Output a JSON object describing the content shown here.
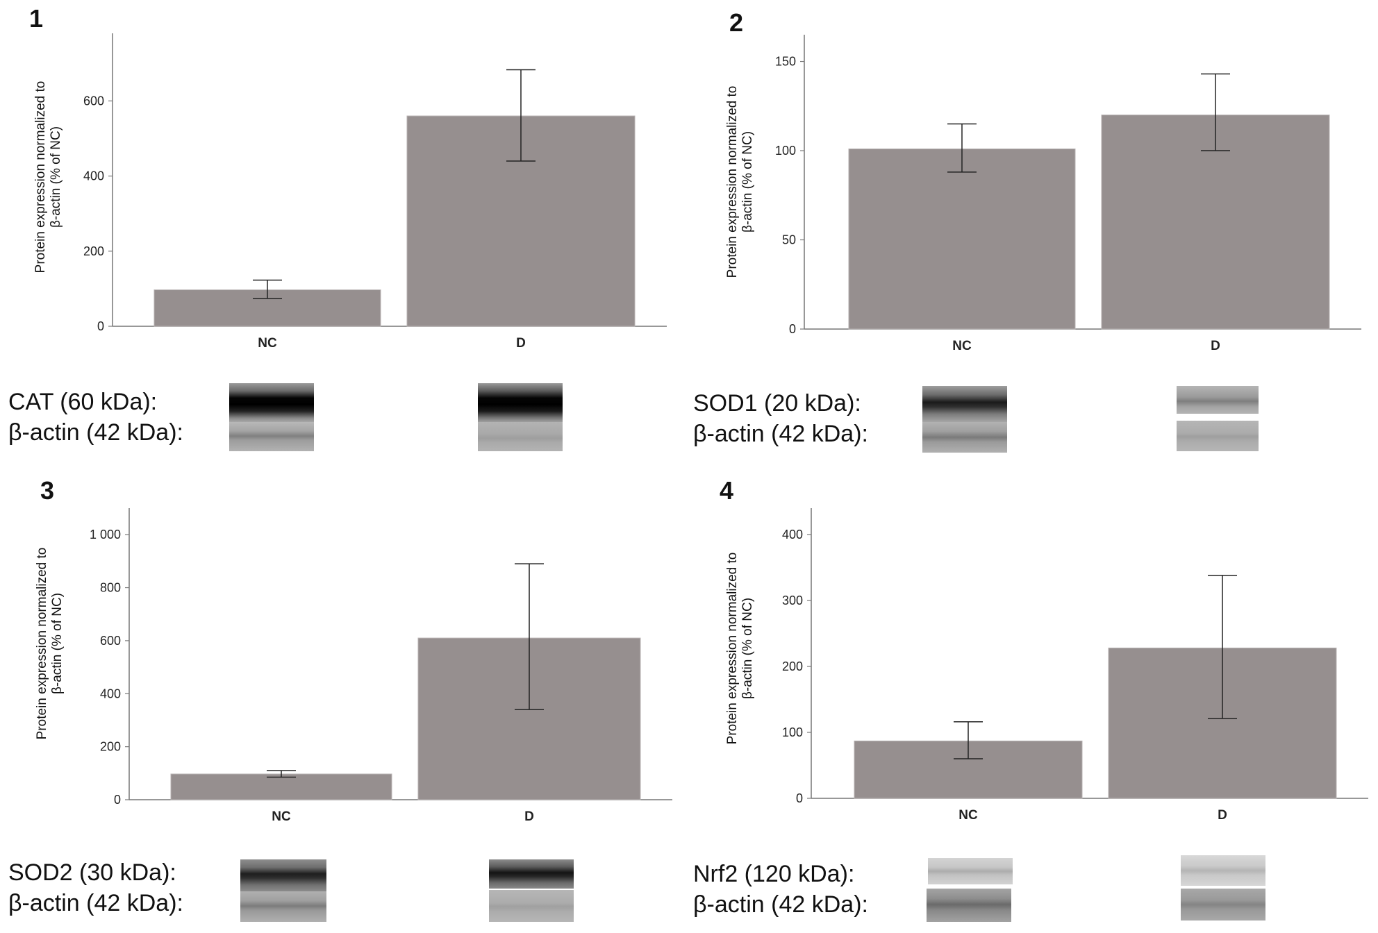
{
  "chart_data": [
    {
      "type": "bar",
      "panel": "1",
      "categories": [
        "NC",
        "D"
      ],
      "values": [
        97,
        560
      ],
      "error_upper": [
        123,
        683
      ],
      "error_lower": [
        74,
        440
      ],
      "ylabel": "Protein expression normalized to β-actin (% of NC)",
      "ylim": [
        0,
        780
      ],
      "yticks": [
        0,
        200,
        400,
        600
      ],
      "ytick_labels": [
        "0",
        "200",
        "400",
        "600"
      ],
      "color": "#968f8f",
      "blots": {
        "target_label": "CAT (60 kDa):",
        "control_label": "β-actin (42 kDa):"
      }
    },
    {
      "type": "bar",
      "panel": "2",
      "categories": [
        "NC",
        "D"
      ],
      "values": [
        101,
        120
      ],
      "error_upper": [
        115,
        143
      ],
      "error_lower": [
        88,
        100
      ],
      "ylabel": "Protein expression normalized to β-actin (% of NC)",
      "ylim": [
        0,
        165
      ],
      "yticks": [
        0,
        50,
        100,
        150
      ],
      "ytick_labels": [
        "0",
        "50",
        "100",
        "150"
      ],
      "color": "#968f8f",
      "blots": {
        "target_label": "SOD1 (20 kDa):",
        "control_label": "β-actin (42 kDa):"
      }
    },
    {
      "type": "bar",
      "panel": "3",
      "categories": [
        "NC",
        "D"
      ],
      "values": [
        97,
        610
      ],
      "error_upper": [
        110,
        890
      ],
      "error_lower": [
        85,
        340
      ],
      "ylabel": "Protein expression normalized to β-actin (% of NC)",
      "ylim": [
        0,
        1100
      ],
      "yticks": [
        0,
        200,
        400,
        600,
        800,
        1000
      ],
      "ytick_labels": [
        "0",
        "200",
        "400",
        "600",
        "800",
        "1 000"
      ],
      "color": "#968f8f",
      "blots": {
        "target_label": "SOD2 (30 kDa):",
        "control_label": "β-actin (42 kDa):"
      }
    },
    {
      "type": "bar",
      "panel": "4",
      "categories": [
        "NC",
        "D"
      ],
      "values": [
        87,
        228
      ],
      "error_upper": [
        116,
        338
      ],
      "error_lower": [
        60,
        121
      ],
      "ylabel": "Protein expression normalized to β-actin (% of NC)",
      "ylim": [
        0,
        440
      ],
      "yticks": [
        0,
        100,
        200,
        300,
        400
      ],
      "ytick_labels": [
        "0",
        "100",
        "200",
        "300",
        "400"
      ],
      "color": "#968f8f",
      "blots": {
        "target_label": "Nrf2 (120 kDa):",
        "control_label": "β-actin (42 kDa):"
      }
    }
  ],
  "ylabel_line1": "Protein expression normalized to",
  "ylabel_line2": "β-actin (% of NC)"
}
